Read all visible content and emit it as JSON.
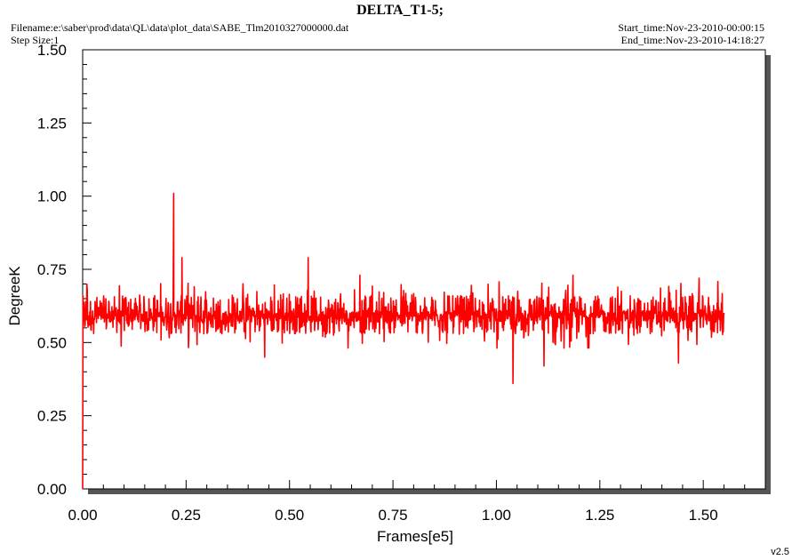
{
  "header": {
    "title": "DELTA_T1-5;",
    "filename": "Filename:e:\\saber\\prod\\data\\QL\\data\\plot_data\\SABE_Tlm2010327000000.dat",
    "step_size": "Step Size:1",
    "start_time": "Start_time:Nov-23-2010-00:00:15",
    "end_time": "End_time:Nov-23-2010-14:18:27"
  },
  "version": "v2.5",
  "colors": {
    "series": "#ff0000",
    "frame_shadow": "#555555",
    "axis": "#000000"
  },
  "chart_data": {
    "type": "line",
    "title": "DELTA_T1-5;",
    "xlabel": "Frames[e5]",
    "ylabel": "DegreeK",
    "xlim": [
      0.0,
      1.65
    ],
    "ylim": [
      0.0,
      1.5
    ],
    "x_ticks": [
      "0.00",
      "0.25",
      "0.50",
      "0.75",
      "1.00",
      "1.25",
      "1.50"
    ],
    "y_ticks": [
      "0.00",
      "0.25",
      "0.50",
      "0.75",
      "1.00",
      "1.25",
      "1.50"
    ],
    "grid": false,
    "series": [
      {
        "baseline": 0.59,
        "noise_band": [
          0.53,
          0.66
        ],
        "x_start": 0.0,
        "x_end": 1.55,
        "spikes": [
          {
            "x": 0.0,
            "y": 0.0
          },
          {
            "x": 0.01,
            "y": 0.7
          },
          {
            "x": 0.22,
            "y": 1.01
          },
          {
            "x": 0.24,
            "y": 0.79
          },
          {
            "x": 0.545,
            "y": 0.79
          },
          {
            "x": 0.44,
            "y": 0.45
          },
          {
            "x": 1.04,
            "y": 0.36
          },
          {
            "x": 1.115,
            "y": 0.42
          },
          {
            "x": 1.44,
            "y": 0.43
          },
          {
            "x": 0.67,
            "y": 0.73
          },
          {
            "x": 1.185,
            "y": 0.73
          },
          {
            "x": 1.49,
            "y": 0.72
          }
        ]
      }
    ]
  }
}
